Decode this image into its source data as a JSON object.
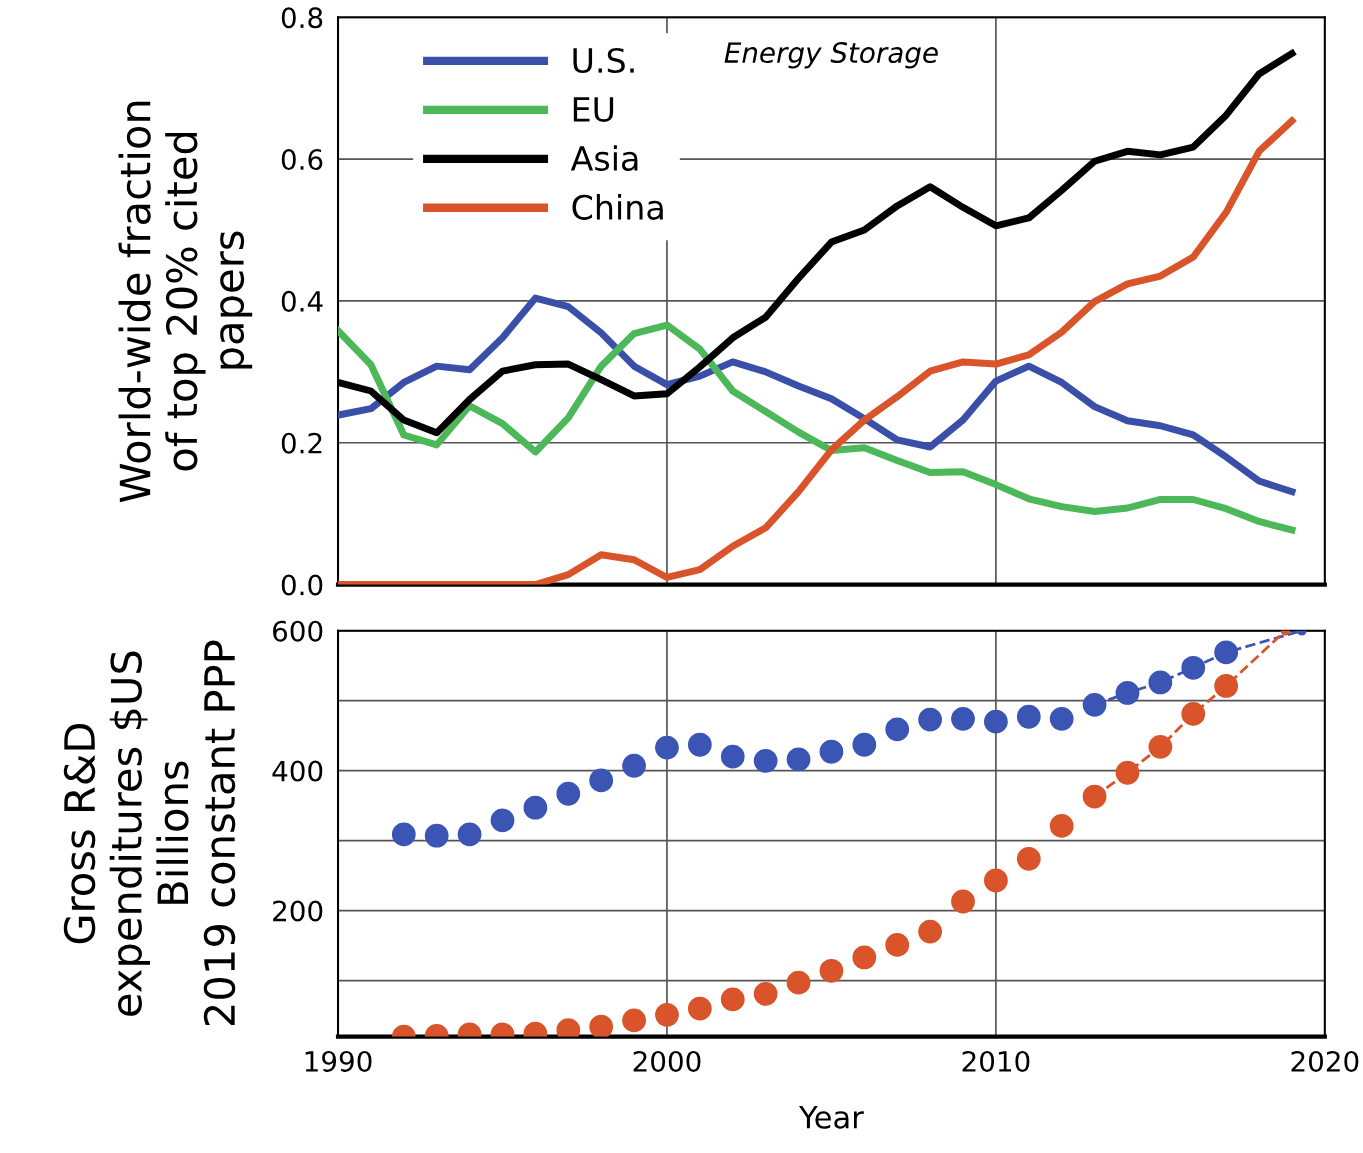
{
  "chart_data": [
    {
      "type": "line",
      "ylabel": "World-wide fraction\nof top 20% cited\npapers",
      "annotations": [
        "Energy Storage"
      ],
      "x": [
        1990,
        1991,
        1992,
        1993,
        1994,
        1995,
        1996,
        1997,
        1998,
        1999,
        2000,
        2001,
        2002,
        2003,
        2004,
        2005,
        2006,
        2007,
        2008,
        2009,
        2010,
        2011,
        2012,
        2013,
        2014,
        2015,
        2016,
        2017,
        2018,
        2019
      ],
      "series": [
        {
          "name": "U.S.",
          "color": "#3a4fa8",
          "values": [
            0.239,
            0.248,
            0.285,
            0.308,
            0.303,
            0.348,
            0.404,
            0.392,
            0.355,
            0.308,
            0.282,
            0.294,
            0.314,
            0.3,
            0.28,
            0.262,
            0.234,
            0.204,
            0.194,
            0.232,
            0.287,
            0.308,
            0.285,
            0.251,
            0.231,
            0.224,
            0.211,
            0.18,
            0.146,
            0.131
          ]
        },
        {
          "name": "EU",
          "color": "#4cb85a",
          "values": [
            0.358,
            0.31,
            0.211,
            0.197,
            0.252,
            0.227,
            0.187,
            0.235,
            0.308,
            0.354,
            0.366,
            0.332,
            0.273,
            0.244,
            0.215,
            0.189,
            0.193,
            0.175,
            0.158,
            0.159,
            0.141,
            0.121,
            0.11,
            0.103,
            0.108,
            0.12,
            0.12,
            0.107,
            0.089,
            0.077
          ]
        },
        {
          "name": "Asia",
          "color": "#000000",
          "values": [
            0.285,
            0.273,
            0.232,
            0.214,
            0.261,
            0.301,
            0.31,
            0.311,
            0.289,
            0.266,
            0.269,
            0.307,
            0.348,
            0.377,
            0.432,
            0.483,
            0.5,
            0.534,
            0.561,
            0.532,
            0.506,
            0.517,
            0.556,
            0.597,
            0.611,
            0.606,
            0.617,
            0.662,
            0.72,
            0.749
          ]
        },
        {
          "name": "China",
          "color": "#d9542a",
          "values": [
            0,
            0,
            0,
            0,
            0,
            0,
            0,
            0.014,
            0.042,
            0.035,
            0.01,
            0.021,
            0.054,
            0.08,
            0.131,
            0.19,
            0.232,
            0.265,
            0.301,
            0.314,
            0.311,
            0.324,
            0.356,
            0.399,
            0.424,
            0.435,
            0.462,
            0.525,
            0.611,
            0.654
          ]
        }
      ],
      "xlim": [
        1990,
        2020
      ],
      "xticks": [
        1990,
        2000,
        2010,
        2020
      ],
      "ylim": [
        0,
        0.8
      ],
      "yticks": [
        {
          "value": 0,
          "label": "0.0"
        },
        0.2,
        0.4,
        0.6,
        0.8
      ],
      "tick_labels": "y",
      "grid": true,
      "legend": "top left",
      "marker": "none",
      "line_style": "solid"
    },
    {
      "type": "scatter",
      "xlabel": "Year",
      "ylabel": "Gross R&D\nexpenditures $US\nBillions\n2019 constant PPP",
      "x": [
        1992,
        1993,
        1994,
        1995,
        1996,
        1997,
        1998,
        1999,
        2000,
        2001,
        2002,
        2003,
        2004,
        2005,
        2006,
        2007,
        2008,
        2009,
        2010,
        2011,
        2012,
        2013,
        2014,
        2015,
        2016,
        2017
      ],
      "series": [
        {
          "color": "#3a55b4",
          "values": [
            309,
            307,
            309,
            329,
            347,
            367,
            386,
            407,
            433,
            437,
            420,
            414,
            416,
            427,
            437,
            459,
            473,
            474,
            470,
            477,
            474,
            494,
            511,
            526,
            547,
            569
          ]
        },
        {
          "color": "#d9542a",
          "values": [
            20,
            21,
            23,
            23,
            24,
            29,
            34,
            43,
            51,
            60,
            73,
            81,
            97,
            114,
            133,
            151,
            170,
            213,
            243,
            274,
            321,
            363,
            397,
            434,
            481,
            521
          ]
        },
        {
          "type": "line",
          "line_style": "dashed",
          "color": "#3a55b4",
          "x": [
            2013,
            2014,
            2015,
            2016,
            2017,
            2019.3
          ],
          "values": [
            494,
            511,
            526,
            547,
            569,
            600
          ]
        },
        {
          "type": "line",
          "line_style": "dashed",
          "color": "#d9542a",
          "x": [
            2013,
            2014,
            2015,
            2016,
            2017,
            2018.8
          ],
          "values": [
            363,
            397,
            434,
            481,
            521,
            600
          ]
        }
      ],
      "xlim": [
        1990,
        2020
      ],
      "xticks": [
        1990,
        2000,
        2010,
        2020
      ],
      "ylim": [
        20,
        600
      ],
      "yticks": [
        {
          "value": 100,
          "label": null
        },
        200,
        {
          "value": 300,
          "label": null
        },
        400,
        {
          "value": 500,
          "label": null
        },
        600
      ],
      "grid": true,
      "marker": "circle"
    }
  ]
}
